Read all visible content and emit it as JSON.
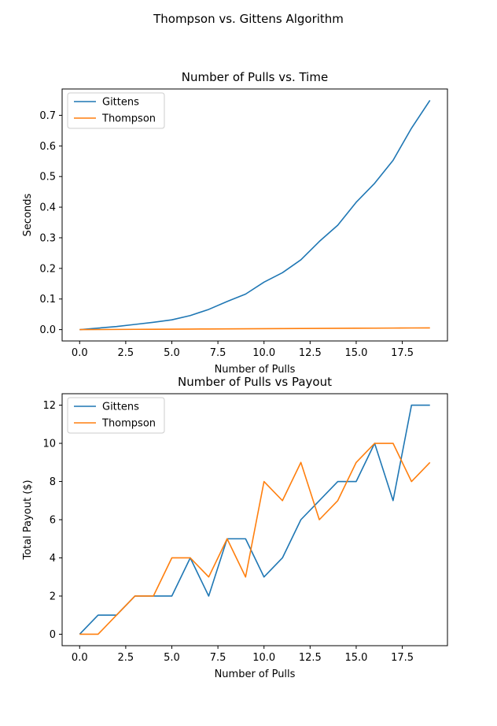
{
  "figure": {
    "suptitle": "Thompson vs. Gittens Algorithm"
  },
  "colors": {
    "gittens": "#1f77b4",
    "thompson": "#ff7f0e"
  },
  "chart_data": [
    {
      "type": "line",
      "title": "Number of Pulls vs. Time",
      "xlabel": "Number of Pulls",
      "ylabel": "Seconds",
      "xlim": [
        -0.95,
        19.95
      ],
      "ylim": [
        -0.037,
        0.786
      ],
      "xticks": [
        0.0,
        2.5,
        5.0,
        7.5,
        10.0,
        12.5,
        15.0,
        17.5
      ],
      "xtick_labels": [
        "0.0",
        "2.5",
        "5.0",
        "7.5",
        "10.0",
        "12.5",
        "15.0",
        "17.5"
      ],
      "yticks": [
        0.0,
        0.1,
        0.2,
        0.3,
        0.4,
        0.5,
        0.6,
        0.7
      ],
      "ytick_labels": [
        "0.0",
        "0.1",
        "0.2",
        "0.3",
        "0.4",
        "0.5",
        "0.6",
        "0.7"
      ],
      "grid": false,
      "legend": "upper-left",
      "x": [
        0,
        1,
        2,
        3,
        4,
        5,
        6,
        7,
        8,
        9,
        10,
        11,
        12,
        13,
        14,
        15,
        16,
        17,
        18,
        19
      ],
      "series": [
        {
          "name": "Gittens",
          "color": "#1f77b4",
          "values": [
            0.0,
            0.005,
            0.01,
            0.017,
            0.024,
            0.032,
            0.046,
            0.066,
            0.092,
            0.116,
            0.155,
            0.186,
            0.228,
            0.288,
            0.341,
            0.416,
            0.478,
            0.553,
            0.658,
            0.749
          ]
        },
        {
          "name": "Thompson",
          "color": "#ff7f0e",
          "values": [
            0.0,
            0.0003,
            0.0006,
            0.0009,
            0.0012,
            0.0015,
            0.0018,
            0.0021,
            0.0024,
            0.0027,
            0.003,
            0.0033,
            0.0036,
            0.0039,
            0.0042,
            0.0045,
            0.0048,
            0.0051,
            0.0054,
            0.0057
          ]
        }
      ]
    },
    {
      "type": "line",
      "title": "Number of Pulls vs Payout",
      "xlabel": "Number of Pulls",
      "ylabel": "Total Payout ($)",
      "xlim": [
        -0.95,
        19.95
      ],
      "ylim": [
        -0.6,
        12.6
      ],
      "xticks": [
        0.0,
        2.5,
        5.0,
        7.5,
        10.0,
        12.5,
        15.0,
        17.5
      ],
      "xtick_labels": [
        "0.0",
        "2.5",
        "5.0",
        "7.5",
        "10.0",
        "12.5",
        "15.0",
        "17.5"
      ],
      "yticks": [
        0,
        2,
        4,
        6,
        8,
        10,
        12
      ],
      "ytick_labels": [
        "0",
        "2",
        "4",
        "6",
        "8",
        "10",
        "12"
      ],
      "grid": false,
      "legend": "upper-left",
      "x": [
        0,
        1,
        2,
        3,
        4,
        5,
        6,
        7,
        8,
        9,
        10,
        11,
        12,
        13,
        14,
        15,
        16,
        17,
        18,
        19
      ],
      "series": [
        {
          "name": "Gittens",
          "color": "#1f77b4",
          "values": [
            0,
            1,
            1,
            2,
            2,
            2,
            4,
            2,
            5,
            5,
            3,
            4,
            6,
            7,
            8,
            8,
            10,
            7,
            12,
            12
          ]
        },
        {
          "name": "Thompson",
          "color": "#ff7f0e",
          "values": [
            0,
            0,
            1,
            2,
            2,
            4,
            4,
            3,
            5,
            3,
            8,
            7,
            9,
            6,
            7,
            9,
            10,
            10,
            8,
            9
          ]
        }
      ]
    }
  ]
}
